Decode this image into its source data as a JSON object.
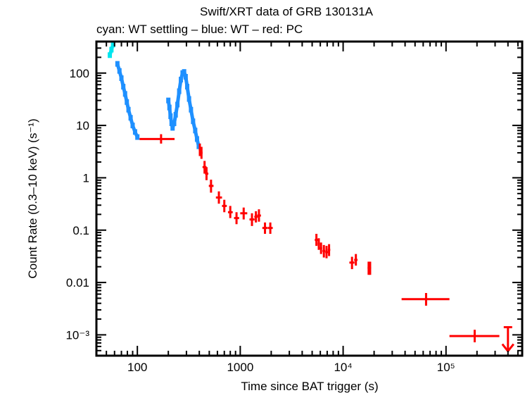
{
  "chart_data": {
    "type": "scatter",
    "title": "Swift/XRT data of GRB 130131A",
    "subtitle": "cyan: WT settling – blue: WT – red: PC",
    "xlabel": "Time since BAT trigger (s)",
    "ylabel": "Count Rate (0.3–10 keV) (s⁻¹)",
    "xscale": "log",
    "yscale": "log",
    "xlim": [
      40,
      550000
    ],
    "ylim": [
      0.0004,
      400
    ],
    "x_ticks": [
      {
        "value": 100,
        "label": "100"
      },
      {
        "value": 1000,
        "label": "1000"
      },
      {
        "value": 10000,
        "label": "10⁴"
      },
      {
        "value": 100000,
        "label": "10⁵"
      }
    ],
    "y_ticks": [
      {
        "value": 100,
        "label": "100"
      },
      {
        "value": 10,
        "label": "10"
      },
      {
        "value": 1,
        "label": "1"
      },
      {
        "value": 0.1,
        "label": "0.1"
      },
      {
        "value": 0.01,
        "label": "0.01"
      },
      {
        "value": 0.001,
        "label": "10⁻³"
      }
    ],
    "grid": false,
    "colors": {
      "wt_settling": "#00e5ee",
      "wt": "#1e90ff",
      "pc": "#ff0000"
    },
    "series": [
      {
        "name": "WT settling",
        "color": "#00e5ee",
        "points": [
          {
            "t": 54,
            "r": 220
          },
          {
            "t": 56,
            "r": 280
          },
          {
            "t": 58,
            "r": 350
          }
        ]
      },
      {
        "name": "WT",
        "color": "#1e90ff",
        "points": [
          {
            "t": 64,
            "r": 150
          },
          {
            "t": 67,
            "r": 110
          },
          {
            "t": 70,
            "r": 80
          },
          {
            "t": 73,
            "r": 55
          },
          {
            "t": 76,
            "r": 40
          },
          {
            "t": 79,
            "r": 28
          },
          {
            "t": 82,
            "r": 20
          },
          {
            "t": 86,
            "r": 14
          },
          {
            "t": 90,
            "r": 10
          },
          {
            "t": 95,
            "r": 7.5
          },
          {
            "t": 100,
            "r": 6
          },
          {
            "t": 200,
            "r": 30
          },
          {
            "t": 205,
            "r": 22
          },
          {
            "t": 210,
            "r": 15
          },
          {
            "t": 215,
            "r": 11
          },
          {
            "t": 220,
            "r": 9
          },
          {
            "t": 228,
            "r": 11
          },
          {
            "t": 236,
            "r": 16
          },
          {
            "t": 245,
            "r": 25
          },
          {
            "t": 255,
            "r": 45
          },
          {
            "t": 265,
            "r": 75
          },
          {
            "t": 275,
            "r": 100
          },
          {
            "t": 285,
            "r": 105
          },
          {
            "t": 295,
            "r": 85
          },
          {
            "t": 305,
            "r": 55
          },
          {
            "t": 318,
            "r": 32
          },
          {
            "t": 332,
            "r": 20
          },
          {
            "t": 348,
            "r": 12
          },
          {
            "t": 365,
            "r": 8
          },
          {
            "t": 380,
            "r": 5.5
          },
          {
            "t": 395,
            "r": 4
          }
        ]
      },
      {
        "name": "PC",
        "color": "#ff0000",
        "points": [
          {
            "t": 170,
            "r": 5.5,
            "t_lo": 105,
            "t_hi": 230,
            "r_lo": 4.5,
            "r_hi": 6.8
          },
          {
            "t": 405,
            "r": 3.5,
            "t_lo": 395,
            "t_hi": 415,
            "r_lo": 2.6,
            "r_hi": 4.5
          },
          {
            "t": 420,
            "r": 3.0,
            "t_lo": 410,
            "t_hi": 430,
            "r_lo": 2.3,
            "r_hi": 3.9
          },
          {
            "t": 450,
            "r": 1.6,
            "t_lo": 430,
            "t_hi": 470,
            "r_lo": 1.2,
            "r_hi": 2.1
          },
          {
            "t": 470,
            "r": 1.2,
            "t_lo": 455,
            "t_hi": 490,
            "r_lo": 0.9,
            "r_hi": 1.6
          },
          {
            "t": 520,
            "r": 0.7,
            "t_lo": 495,
            "t_hi": 550,
            "r_lo": 0.52,
            "r_hi": 0.92
          },
          {
            "t": 620,
            "r": 0.42,
            "t_lo": 580,
            "t_hi": 665,
            "r_lo": 0.32,
            "r_hi": 0.55
          },
          {
            "t": 700,
            "r": 0.29,
            "t_lo": 665,
            "t_hi": 740,
            "r_lo": 0.22,
            "r_hi": 0.38
          },
          {
            "t": 800,
            "r": 0.22,
            "t_lo": 760,
            "t_hi": 845,
            "r_lo": 0.17,
            "r_hi": 0.29
          },
          {
            "t": 920,
            "r": 0.17,
            "t_lo": 870,
            "t_hi": 975,
            "r_lo": 0.13,
            "r_hi": 0.22
          },
          {
            "t": 1080,
            "r": 0.21,
            "t_lo": 1000,
            "t_hi": 1170,
            "r_lo": 0.16,
            "r_hi": 0.27
          },
          {
            "t": 1300,
            "r": 0.16,
            "t_lo": 1230,
            "t_hi": 1380,
            "r_lo": 0.12,
            "r_hi": 0.21
          },
          {
            "t": 1420,
            "r": 0.18,
            "t_lo": 1370,
            "t_hi": 1480,
            "r_lo": 0.14,
            "r_hi": 0.23
          },
          {
            "t": 1520,
            "r": 0.19,
            "t_lo": 1460,
            "t_hi": 1590,
            "r_lo": 0.145,
            "r_hi": 0.25
          },
          {
            "t": 1740,
            "r": 0.11,
            "t_lo": 1640,
            "t_hi": 1850,
            "r_lo": 0.085,
            "r_hi": 0.14
          },
          {
            "t": 1960,
            "r": 0.11,
            "t_lo": 1860,
            "t_hi": 2070,
            "r_lo": 0.085,
            "r_hi": 0.14
          },
          {
            "t": 5500,
            "r": 0.065,
            "t_lo": 5300,
            "t_hi": 5700,
            "r_lo": 0.05,
            "r_hi": 0.085
          },
          {
            "t": 5800,
            "r": 0.055,
            "t_lo": 5650,
            "t_hi": 5950,
            "r_lo": 0.042,
            "r_hi": 0.07
          },
          {
            "t": 6100,
            "r": 0.045,
            "t_lo": 5950,
            "t_hi": 6250,
            "r_lo": 0.035,
            "r_hi": 0.058
          },
          {
            "t": 6500,
            "r": 0.04,
            "t_lo": 6300,
            "t_hi": 6700,
            "r_lo": 0.03,
            "r_hi": 0.052
          },
          {
            "t": 6900,
            "r": 0.038,
            "t_lo": 6700,
            "t_hi": 7150,
            "r_lo": 0.029,
            "r_hi": 0.05
          },
          {
            "t": 7300,
            "r": 0.042,
            "t_lo": 7100,
            "t_hi": 7500,
            "r_lo": 0.032,
            "r_hi": 0.054
          },
          {
            "t": 12200,
            "r": 0.024,
            "t_lo": 11500,
            "t_hi": 12900,
            "r_lo": 0.018,
            "r_hi": 0.031
          },
          {
            "t": 13300,
            "r": 0.027,
            "t_lo": 12800,
            "t_hi": 13800,
            "r_lo": 0.021,
            "r_hi": 0.035
          },
          {
            "t": 17700,
            "r": 0.019,
            "t_lo": 17300,
            "t_hi": 18100,
            "r_lo": 0.014,
            "r_hi": 0.025
          },
          {
            "t": 18300,
            "r": 0.019,
            "t_lo": 18000,
            "t_hi": 18700,
            "r_lo": 0.014,
            "r_hi": 0.025
          },
          {
            "t": 64000,
            "r": 0.0048,
            "t_lo": 37000,
            "t_hi": 108000,
            "r_lo": 0.0036,
            "r_hi": 0.0063
          },
          {
            "t": 190000,
            "r": 0.00095,
            "t_lo": 108000,
            "t_hi": 330000,
            "r_lo": 0.00072,
            "r_hi": 0.00125
          }
        ],
        "upper_limits": [
          {
            "t": 400000,
            "r": 0.0014
          }
        ]
      }
    ]
  }
}
